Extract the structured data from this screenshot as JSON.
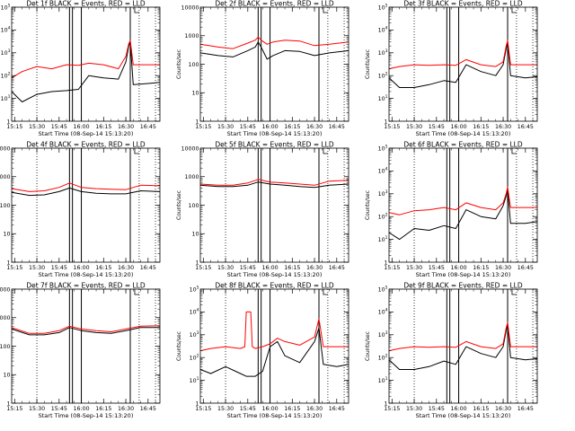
{
  "figure": {
    "xlabel": "Start Time (08-Sep-14 15:13:20)",
    "ylabel": "Counts/sec",
    "x_ticks": [
      "15:15",
      "15:30",
      "15:45",
      "16:00",
      "16:15",
      "16:30",
      "16:45"
    ],
    "colors": {
      "events": "#000000",
      "lld": "#ff0000",
      "axes": "#000000",
      "background": "#ffffff"
    }
  },
  "chart_data": [
    {
      "type": "line",
      "title": "Det 1f BLACK = Events, RED = LLD",
      "xlabel": "Start Time (08-Sep-14 15:13:20)",
      "ylabel": "Counts/sec",
      "xlim": [
        "15:13",
        "16:53"
      ],
      "yscale": "log",
      "ylim": [
        1,
        100000
      ],
      "yticks": [
        "1",
        "10^1",
        "10^2",
        "10^3",
        "10^4",
        "10^5"
      ],
      "legend": "none",
      "markers": {
        "dotted": [
          "15:30",
          "16:39",
          "16:50"
        ],
        "solid": [
          "15:52",
          "15:54",
          "16:00",
          "16:33"
        ],
        "flag": "16:36"
      },
      "series": [
        {
          "name": "Events",
          "color": "#000000",
          "x": [
            "15:13",
            "15:20",
            "15:30",
            "15:40",
            "15:50",
            "15:58",
            "16:05",
            "16:15",
            "16:25",
            "16:30",
            "16:32",
            "16:33",
            "16:35",
            "16:45",
            "16:53"
          ],
          "y": [
            20,
            7,
            15,
            20,
            22,
            25,
            100,
            80,
            70,
            400,
            2000,
            3000,
            40,
            45,
            50
          ]
        },
        {
          "name": "LLD",
          "color": "#ff0000",
          "x": [
            "15:13",
            "15:20",
            "15:30",
            "15:40",
            "15:50",
            "15:58",
            "16:05",
            "16:15",
            "16:25",
            "16:30",
            "16:32",
            "16:33",
            "16:35",
            "16:45",
            "16:53"
          ],
          "y": [
            80,
            150,
            250,
            200,
            300,
            280,
            350,
            300,
            200,
            700,
            2500,
            3500,
            300,
            300,
            300
          ]
        }
      ]
    },
    {
      "type": "line",
      "title": "Det 2f BLACK = Events, RED = LLD",
      "xlabel": "Start Time (08-Sep-14 15:13:20)",
      "ylabel": "Counts/sec",
      "xlim": [
        "15:13",
        "16:53"
      ],
      "yscale": "log",
      "ylim": [
        1,
        10000
      ],
      "yticks": [
        "1",
        "10",
        "100",
        "1000",
        "10000"
      ],
      "legend": "none",
      "markers": {
        "dotted": [
          "15:30",
          "16:39",
          "16:50"
        ],
        "solid": [
          "15:52",
          "15:54",
          "16:00",
          "16:33"
        ],
        "flag": "16:36"
      },
      "series": [
        {
          "name": "Events",
          "color": "#000000",
          "x": [
            "15:13",
            "15:25",
            "15:35",
            "15:45",
            "15:50",
            "15:52",
            "15:54",
            "15:58",
            "16:02",
            "16:10",
            "16:20",
            "16:30",
            "16:40",
            "16:53"
          ],
          "y": [
            250,
            200,
            180,
            300,
            400,
            600,
            400,
            150,
            200,
            300,
            280,
            200,
            250,
            300
          ]
        },
        {
          "name": "LLD",
          "color": "#ff0000",
          "x": [
            "15:13",
            "15:25",
            "15:35",
            "15:45",
            "15:50",
            "15:52",
            "15:54",
            "15:58",
            "16:02",
            "16:10",
            "16:20",
            "16:30",
            "16:40",
            "16:53"
          ],
          "y": [
            500,
            400,
            350,
            550,
            700,
            900,
            700,
            500,
            600,
            700,
            650,
            450,
            500,
            600
          ]
        }
      ]
    },
    {
      "type": "line",
      "title": "Det 3f BLACK = Events, RED = LLD",
      "xlabel": "Start Time (08-Sep-14 15:13:20)",
      "ylabel": "Counts/sec",
      "xlim": [
        "15:13",
        "16:53"
      ],
      "yscale": "log",
      "ylim": [
        1,
        100000
      ],
      "yticks": [
        "1",
        "10^1",
        "10^2",
        "10^3",
        "10^4",
        "10^5"
      ],
      "legend": "none",
      "markers": {
        "dotted": [
          "15:30",
          "16:39",
          "16:50"
        ],
        "solid": [
          "15:52",
          "15:54",
          "16:00",
          "16:33"
        ],
        "flag": "16:36"
      },
      "series": [
        {
          "name": "Events",
          "color": "#000000",
          "x": [
            "15:13",
            "15:20",
            "15:30",
            "15:40",
            "15:50",
            "15:58",
            "16:05",
            "16:15",
            "16:25",
            "16:30",
            "16:32",
            "16:33",
            "16:35",
            "16:45",
            "16:53"
          ],
          "y": [
            80,
            30,
            30,
            40,
            60,
            50,
            300,
            150,
            100,
            300,
            1500,
            3000,
            100,
            80,
            90
          ]
        },
        {
          "name": "LLD",
          "color": "#ff0000",
          "x": [
            "15:13",
            "15:20",
            "15:30",
            "15:40",
            "15:50",
            "15:58",
            "16:05",
            "16:15",
            "16:25",
            "16:30",
            "16:32",
            "16:33",
            "16:35",
            "16:45",
            "16:53"
          ],
          "y": [
            200,
            250,
            300,
            280,
            300,
            280,
            500,
            300,
            250,
            400,
            2000,
            3500,
            300,
            300,
            300
          ]
        }
      ]
    },
    {
      "type": "line",
      "title": "Det 4f BLACK = Events, RED = LLD",
      "xlabel": "Start Time (08-Sep-14 15:13:20)",
      "ylabel": "Counts/sec",
      "xlim": [
        "15:13",
        "16:53"
      ],
      "yscale": "log",
      "ylim": [
        1,
        10000
      ],
      "yticks": [
        "1",
        "10",
        "100",
        "1000",
        "10000"
      ],
      "legend": "none",
      "markers": {
        "dotted": [
          "15:30",
          "16:39",
          "16:50"
        ],
        "solid": [
          "15:52",
          "15:54",
          "16:00",
          "16:33"
        ],
        "flag": "16:36"
      },
      "series": [
        {
          "name": "Events",
          "color": "#000000",
          "x": [
            "15:13",
            "15:25",
            "15:35",
            "15:45",
            "15:52",
            "16:00",
            "16:10",
            "16:20",
            "16:30",
            "16:40",
            "16:53"
          ],
          "y": [
            280,
            220,
            230,
            300,
            400,
            300,
            260,
            250,
            250,
            320,
            300
          ]
        },
        {
          "name": "LLD",
          "color": "#ff0000",
          "x": [
            "15:13",
            "15:25",
            "15:35",
            "15:45",
            "15:52",
            "16:00",
            "16:10",
            "16:20",
            "16:30",
            "16:40",
            "16:53"
          ],
          "y": [
            380,
            300,
            320,
            420,
            600,
            420,
            380,
            360,
            350,
            500,
            480
          ]
        }
      ]
    },
    {
      "type": "line",
      "title": "Det 5f BLACK = Events, RED = LLD",
      "xlabel": "Start Time (08-Sep-14 15:13:20)",
      "ylabel": "Counts/sec",
      "xlim": [
        "15:13",
        "16:53"
      ],
      "yscale": "log",
      "ylim": [
        1,
        10000
      ],
      "yticks": [
        "1",
        "10",
        "100",
        "1000",
        "10000"
      ],
      "legend": "none",
      "markers": {
        "dotted": [
          "15:30",
          "16:39",
          "16:50"
        ],
        "solid": [
          "15:52",
          "15:54",
          "16:00",
          "16:33"
        ],
        "flag": "16:36"
      },
      "series": [
        {
          "name": "Events",
          "color": "#000000",
          "x": [
            "15:13",
            "15:25",
            "15:35",
            "15:45",
            "15:52",
            "16:00",
            "16:10",
            "16:20",
            "16:30",
            "16:40",
            "16:53"
          ],
          "y": [
            500,
            450,
            450,
            500,
            650,
            550,
            500,
            450,
            420,
            500,
            550
          ]
        },
        {
          "name": "LLD",
          "color": "#ff0000",
          "x": [
            "15:13",
            "15:25",
            "15:35",
            "15:45",
            "15:52",
            "16:00",
            "16:10",
            "16:20",
            "16:30",
            "16:40",
            "16:53"
          ],
          "y": [
            550,
            500,
            500,
            600,
            800,
            650,
            600,
            550,
            500,
            700,
            750
          ]
        }
      ]
    },
    {
      "type": "line",
      "title": "Det 6f BLACK = Events, RED = LLD",
      "xlabel": "Start Time (08-Sep-14 15:13:20)",
      "ylabel": "Counts/sec",
      "xlim": [
        "15:13",
        "16:53"
      ],
      "yscale": "log",
      "ylim": [
        1,
        100000
      ],
      "yticks": [
        "1",
        "10^1",
        "10^2",
        "10^3",
        "10^4",
        "10^5"
      ],
      "legend": "none",
      "markers": {
        "dotted": [
          "15:30",
          "16:39",
          "16:50"
        ],
        "solid": [
          "15:52",
          "15:54",
          "16:00",
          "16:33"
        ],
        "flag": "16:36"
      },
      "series": [
        {
          "name": "Events",
          "color": "#000000",
          "x": [
            "15:13",
            "15:20",
            "15:30",
            "15:40",
            "15:50",
            "15:58",
            "16:05",
            "16:15",
            "16:25",
            "16:30",
            "16:32",
            "16:33",
            "16:35",
            "16:45",
            "16:53"
          ],
          "y": [
            20,
            10,
            30,
            25,
            40,
            30,
            200,
            100,
            80,
            300,
            800,
            1500,
            50,
            50,
            60
          ]
        },
        {
          "name": "LLD",
          "color": "#ff0000",
          "x": [
            "15:13",
            "15:20",
            "15:30",
            "15:40",
            "15:50",
            "15:58",
            "16:05",
            "16:15",
            "16:25",
            "16:30",
            "16:32",
            "16:33",
            "16:35",
            "16:45",
            "16:53"
          ],
          "y": [
            150,
            120,
            180,
            200,
            250,
            200,
            400,
            250,
            200,
            400,
            1000,
            2000,
            250,
            250,
            250
          ]
        }
      ]
    },
    {
      "type": "line",
      "title": "Det 7f BLACK = Events, RED = LLD",
      "xlabel": "Start Time (08-Sep-14 15:13:20)",
      "ylabel": "Counts/sec",
      "xlim": [
        "15:13",
        "16:53"
      ],
      "yscale": "log",
      "ylim": [
        1,
        10000
      ],
      "yticks": [
        "1",
        "10",
        "100",
        "1000",
        "10000"
      ],
      "legend": "none",
      "markers": {
        "dotted": [
          "15:30",
          "16:39",
          "16:50"
        ],
        "solid": [
          "15:52",
          "15:54",
          "16:00",
          "16:33"
        ],
        "flag": "16:36"
      },
      "series": [
        {
          "name": "Events",
          "color": "#000000",
          "x": [
            "15:13",
            "15:25",
            "15:35",
            "15:45",
            "15:52",
            "16:00",
            "16:10",
            "16:20",
            "16:30",
            "16:40",
            "16:53"
          ],
          "y": [
            400,
            250,
            250,
            300,
            450,
            350,
            300,
            280,
            350,
            450,
            450
          ]
        },
        {
          "name": "LLD",
          "color": "#ff0000",
          "x": [
            "15:13",
            "15:25",
            "15:35",
            "15:45",
            "15:52",
            "16:00",
            "16:10",
            "16:20",
            "16:30",
            "16:40",
            "16:53"
          ],
          "y": [
            450,
            280,
            280,
            350,
            500,
            400,
            350,
            320,
            400,
            500,
            520
          ]
        }
      ]
    },
    {
      "type": "line",
      "title": "Det 8f BLACK = Events, RED = LLD",
      "xlabel": "Start Time (08-Sep-14 15:13:20)",
      "ylabel": "Counts/sec",
      "xlim": [
        "15:13",
        "16:53"
      ],
      "yscale": "log",
      "ylim": [
        1,
        100000
      ],
      "yticks": [
        "1",
        "10^1",
        "10^2",
        "10^3",
        "10^4",
        "10^5"
      ],
      "legend": "none",
      "markers": {
        "dotted": [
          "15:30",
          "16:39",
          "16:50"
        ],
        "solid": [
          "15:52",
          "15:54",
          "16:00",
          "16:33"
        ],
        "flag": "16:36"
      },
      "series": [
        {
          "name": "Events",
          "color": "#000000",
          "x": [
            "15:13",
            "15:20",
            "15:30",
            "15:40",
            "15:44",
            "15:47",
            "15:50",
            "15:55",
            "16:00",
            "16:05",
            "16:10",
            "16:20",
            "16:30",
            "16:33",
            "16:36",
            "16:45",
            "16:53"
          ],
          "y": [
            30,
            20,
            40,
            20,
            15,
            15,
            15,
            25,
            300,
            500,
            120,
            60,
            500,
            2000,
            50,
            40,
            50
          ]
        },
        {
          "name": "LLD",
          "color": "#ff0000",
          "x": [
            "15:13",
            "15:20",
            "15:30",
            "15:40",
            "15:43",
            "15:44",
            "15:47",
            "15:48",
            "15:50",
            "15:55",
            "16:00",
            "16:05",
            "16:10",
            "16:20",
            "16:30",
            "16:33",
            "16:36",
            "16:45",
            "16:53"
          ],
          "y": [
            200,
            250,
            300,
            250,
            300,
            10000,
            10000,
            300,
            250,
            300,
            400,
            700,
            500,
            350,
            800,
            5000,
            300,
            300,
            300
          ]
        }
      ]
    },
    {
      "type": "line",
      "title": "Det 9f BLACK = Events, RED = LLD",
      "xlabel": "Start Time (08-Sep-14 15:13:20)",
      "ylabel": "Counts/sec",
      "xlim": [
        "15:13",
        "16:53"
      ],
      "yscale": "log",
      "ylim": [
        1,
        100000
      ],
      "yticks": [
        "1",
        "10^1",
        "10^2",
        "10^3",
        "10^4",
        "10^5"
      ],
      "legend": "none",
      "markers": {
        "dotted": [
          "15:30",
          "16:39",
          "16:50"
        ],
        "solid": [
          "15:52",
          "15:54",
          "16:00",
          "16:33"
        ],
        "flag": "16:36"
      },
      "series": [
        {
          "name": "Events",
          "color": "#000000",
          "x": [
            "15:13",
            "15:20",
            "15:30",
            "15:40",
            "15:50",
            "15:58",
            "16:05",
            "16:15",
            "16:25",
            "16:30",
            "16:32",
            "16:33",
            "16:35",
            "16:45",
            "16:53"
          ],
          "y": [
            80,
            30,
            30,
            40,
            70,
            50,
            300,
            150,
            100,
            300,
            1500,
            3000,
            100,
            80,
            90
          ]
        },
        {
          "name": "LLD",
          "color": "#ff0000",
          "x": [
            "15:13",
            "15:20",
            "15:30",
            "15:40",
            "15:50",
            "15:58",
            "16:05",
            "16:15",
            "16:25",
            "16:30",
            "16:32",
            "16:33",
            "16:35",
            "16:45",
            "16:53"
          ],
          "y": [
            200,
            250,
            300,
            280,
            300,
            280,
            500,
            300,
            250,
            400,
            2000,
            3500,
            300,
            300,
            300
          ]
        }
      ]
    }
  ]
}
